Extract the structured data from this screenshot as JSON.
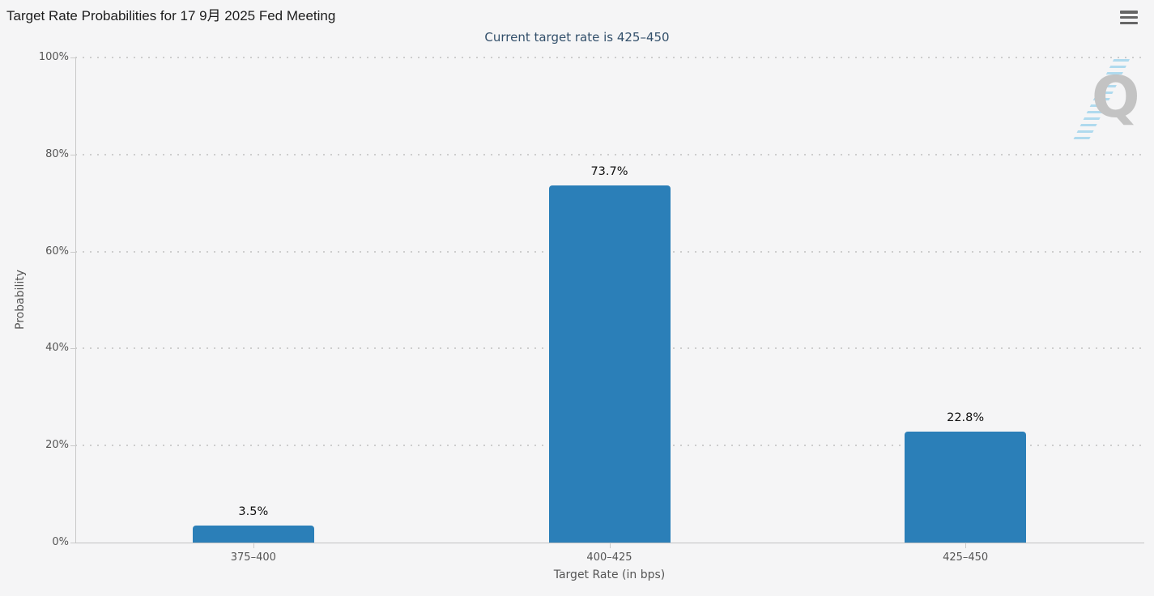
{
  "header": {
    "menu_tooltip": "chart context menu"
  },
  "chart_data": {
    "type": "bar",
    "title": "Target Rate Probabilities for 17 9月 2025 Fed Meeting",
    "subtitle": "Current target rate is 425–450",
    "xlabel": "Target Rate (in bps)",
    "ylabel": "Probability",
    "categories": [
      "375–400",
      "400–425",
      "425–450"
    ],
    "values": [
      3.5,
      73.7,
      22.8
    ],
    "data_labels": [
      "3.5%",
      "73.7%",
      "22.8%"
    ],
    "ylim": [
      0,
      100
    ],
    "ytick_labels": [
      "0%",
      "20%",
      "40%",
      "60%",
      "80%",
      "100%"
    ],
    "grid": "horizontal dotted",
    "legend": "none",
    "colors": {
      "bar": "#2b7fb8",
      "title": "#1d1d1d",
      "subtitle": "#33506b",
      "axis_text": "#555555",
      "axis_line": "#c9c9c9",
      "background": "#f5f5f6",
      "watermark_q": "#c3c3c3",
      "watermark_streak": "#76c4e8"
    },
    "watermark": "Q"
  }
}
